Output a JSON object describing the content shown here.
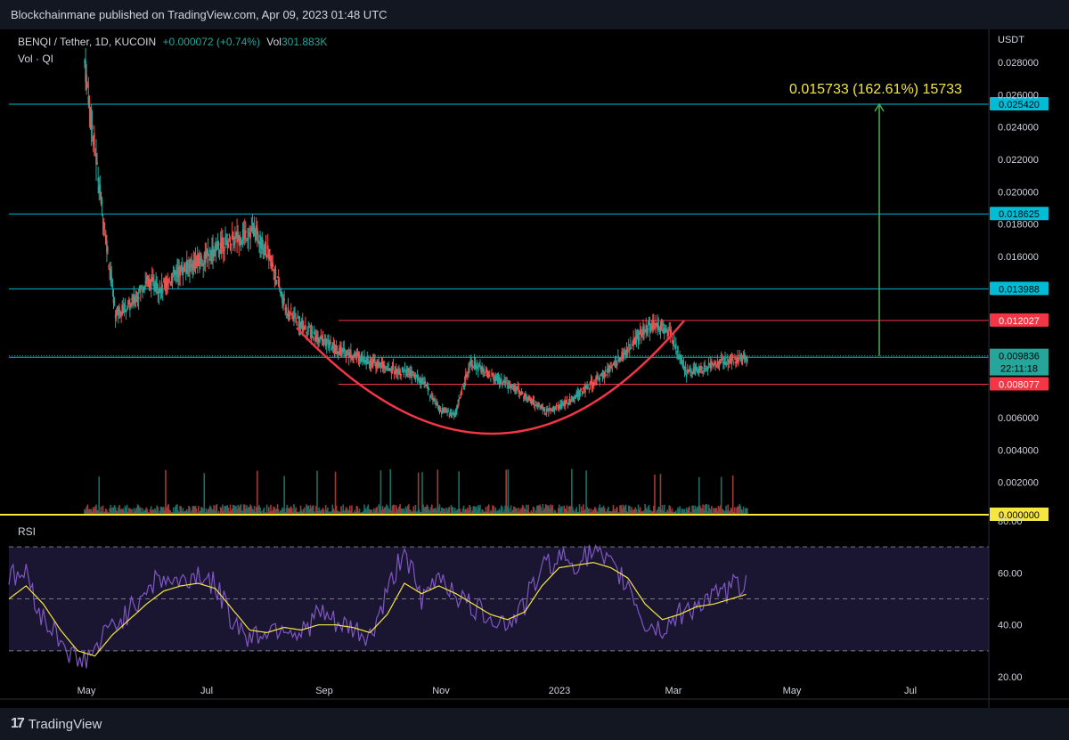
{
  "header": {
    "publish_line": "Blockchainmane published on TradingView.com, Apr 09, 2023 01:48 UTC"
  },
  "legend": {
    "symbol": "BENQI / Tether, 1D, KUCOIN",
    "change": "+0.000072 (+0.74%)",
    "volume_label": "Vol",
    "volume_value": "301.883K",
    "vol_line": "Vol · QI"
  },
  "footer": {
    "brand": "TradingView"
  },
  "chart_data": [
    {
      "type": "candlestick",
      "currency": "USDT",
      "x_ticks": [
        "May",
        "Jul",
        "Sep",
        "Nov",
        "2023",
        "Mar",
        "May",
        "Jul"
      ],
      "y_ticks": [
        "0.028000",
        "0.026000",
        "0.024000",
        "0.022000",
        "0.020000",
        "0.018000",
        "0.016000",
        "0.006000",
        "0.004000",
        "0.002000"
      ],
      "ylim": [
        0,
        0.0295
      ],
      "horizontal_levels": [
        {
          "value": 0.02542,
          "label": "0.025420",
          "color": "#00bcd4"
        },
        {
          "value": 0.018625,
          "label": "0.018625",
          "color": "#00bcd4"
        },
        {
          "value": 0.013988,
          "label": "0.013988",
          "color": "#00bcd4"
        },
        {
          "value": 0.012027,
          "label": "0.012027",
          "color": "#f23645"
        },
        {
          "value": 0.009749,
          "label": "0.009749",
          "color": "#00bcd4"
        },
        {
          "value": 0.008077,
          "label": "0.008077",
          "color": "#f23645"
        }
      ],
      "last_price": {
        "value": 0.009836,
        "label": "0.009836",
        "countdown": "22:11:18"
      },
      "zero_label": "0.000000",
      "target_annotation": "0.015733 (162.61%) 15733",
      "close_series_approx": [
        0.028,
        0.02,
        0.0125,
        0.013,
        0.0145,
        0.014,
        0.015,
        0.0155,
        0.016,
        0.0168,
        0.0172,
        0.0176,
        0.016,
        0.0128,
        0.0118,
        0.011,
        0.0104,
        0.01,
        0.0097,
        0.0093,
        0.009,
        0.0088,
        0.0082,
        0.0065,
        0.0062,
        0.0095,
        0.0088,
        0.0082,
        0.0078,
        0.007,
        0.0064,
        0.0068,
        0.0075,
        0.0082,
        0.009,
        0.01,
        0.0112,
        0.0118,
        0.0112,
        0.0088,
        0.009,
        0.0094,
        0.0096,
        0.0098
      ],
      "cup_pattern_color": "#f23645",
      "target_arrow_color": "#4caf50"
    },
    {
      "type": "line",
      "title": "RSI",
      "y_ticks": [
        "80.00",
        "60.00",
        "40.00",
        "20.00"
      ],
      "ylim": [
        20,
        80
      ],
      "bands": [
        30,
        50,
        70
      ],
      "rsi_approx": [
        58,
        60,
        42,
        35,
        25,
        30,
        40,
        45,
        55,
        58,
        56,
        60,
        55,
        42,
        35,
        38,
        40,
        36,
        45,
        40,
        38,
        35,
        52,
        70,
        48,
        60,
        52,
        46,
        44,
        40,
        48,
        62,
        66,
        64,
        68,
        62,
        56,
        40,
        38,
        44,
        48,
        50,
        54,
        57
      ],
      "sma_approx": [
        50,
        55,
        48,
        38,
        30,
        28,
        36,
        42,
        48,
        53,
        55,
        56,
        54,
        46,
        38,
        37,
        39,
        38,
        40,
        40,
        39,
        37,
        44,
        56,
        52,
        55,
        52,
        48,
        44,
        42,
        45,
        55,
        62,
        63,
        64,
        62,
        58,
        48,
        42,
        44,
        47,
        48,
        50,
        52
      ],
      "colors": {
        "rsi": "#7e57c2",
        "sma": "#f5e642"
      }
    }
  ]
}
